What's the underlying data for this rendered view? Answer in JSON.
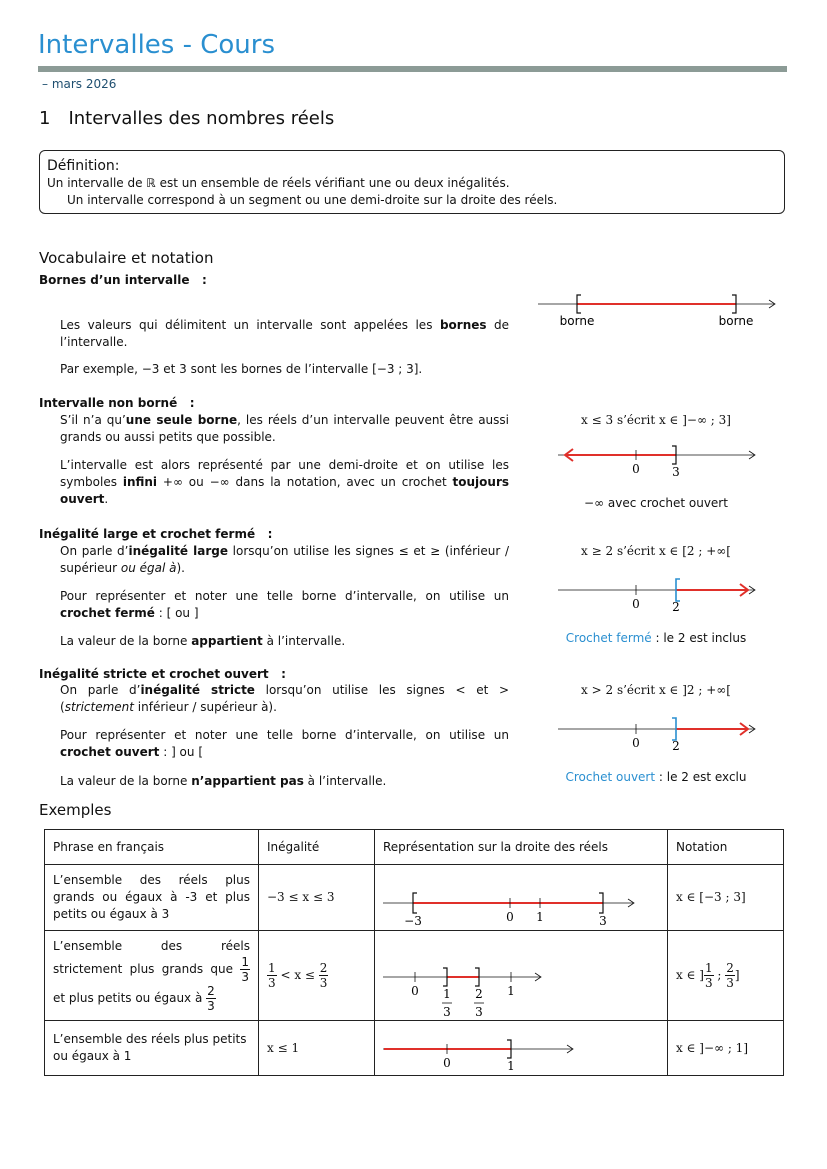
{
  "header": {
    "title": "Intervalles - Cours",
    "date": "– mars 2026"
  },
  "section": {
    "number": "1",
    "title": "Intervalles des nombres réels"
  },
  "definition": {
    "label": "Définition:",
    "lines": [
      "Un intervalle de ℝ est un ensemble de réels vérifiant une ou deux inégalités.",
      "Un intervalle correspond à un segment ou une demi-droite sur la droite des réels."
    ]
  },
  "vocabulary": {
    "title": "Vocabulaire et notation",
    "blocks": [
      {
        "heading": "Bornes d’un intervalle   :",
        "paragraphs": [
          [
            "Les valeurs qui délimitent un intervalle sont appelées les ",
            "bornes",
            " de l’intervalle."
          ],
          [
            "Par exemple, −3 et 3 sont les bornes de l’intervalle [−3 ; 3]."
          ]
        ],
        "figure": {
          "labels": [
            "borne",
            "borne"
          ]
        }
      },
      {
        "heading": "Intervalle non borné   :",
        "paragraphs": [
          [
            "S’il n’a qu’",
            "une seule borne",
            ", les réels d’un intervalle peuvent être aussi grands ou aussi petits que possible."
          ],
          [
            "L’intervalle est alors représenté par une demi-droite et on utilise les symboles ",
            "infini",
            " +∞ ou −∞ dans la notation, avec un crochet ",
            "toujours ouvert",
            "."
          ]
        ],
        "figure": {
          "caption": "x ≤ 3 s’écrit x ∈ ]−∞ ; 3]",
          "labels": [
            "0",
            "3"
          ],
          "note": "−∞ avec crochet ouvert"
        }
      },
      {
        "heading": "Inégalité large et crochet fermé   :",
        "paragraphs": [
          [
            "On parle d’",
            "inégalité large",
            " lorsqu’on utilise les signes ≤ et ≥ (inférieur / supérieur ",
            "ou égal à",
            ")."
          ],
          [
            "Pour représenter et noter une telle borne d’intervalle, on utilise un ",
            "crochet fermé",
            " : [ ou ]"
          ],
          [
            "La valeur de la borne ",
            "appartient",
            " à l’intervalle."
          ]
        ],
        "figure": {
          "caption": "x ≥ 2 s’écrit x ∈ [2 ; +∞[",
          "labels": [
            "0",
            "2"
          ],
          "note": [
            "Crochet fermé",
            " : le 2 est inclus"
          ]
        }
      },
      {
        "heading": "Inégalité stricte et crochet ouvert   :",
        "paragraphs": [
          [
            "On parle d’",
            "inégalité stricte",
            " lorsqu’on utilise les signes < et > (",
            "strictement",
            " inférieur / supérieur à)."
          ],
          [
            "Pour représenter et noter une telle borne d’intervalle, on utilise un ",
            "crochet ouvert",
            " : ] ou ["
          ],
          [
            "La valeur de la borne ",
            "n’appartient pas",
            " à l’intervalle."
          ]
        ],
        "figure": {
          "caption": "x > 2 s’écrit x ∈ ]2 ; +∞[",
          "labels": [
            "0",
            "2"
          ],
          "note": [
            "Crochet ouvert",
            " : le 2 est exclu"
          ]
        }
      }
    ]
  },
  "examples": {
    "title": "Exemples",
    "table": {
      "header": [
        "Phrase en français",
        "Inégalité",
        "Représentation sur la droite des réels",
        "Notation"
      ],
      "rows": [
        {
          "phrase": "L’ensemble des réels plus grands ou égaux à -3 et plus petits ou égaux à 3",
          "inequality": "−3 ≤ x ≤ 3",
          "labels": [
            "−3",
            "0",
            "1",
            "3"
          ],
          "notation": "x ∈ [−3 ; 3]"
        },
        {
          "phrase": [
            "L’ensemble des réels strictement plus grands que ",
            {
              "num": "1",
              "den": "3"
            },
            " et plus petits ou égaux à ",
            {
              "num": "2",
              "den": "3"
            }
          ],
          "inequality": [
            {
              "num": "1",
              "den": "3"
            },
            " < x ≤ ",
            {
              "num": "2",
              "den": "3"
            }
          ],
          "labels": [
            "0",
            {
              "num": "1",
              "den": "3"
            },
            {
              "num": "2",
              "den": "3"
            },
            "1"
          ],
          "notation": [
            "x ∈ ]",
            {
              "num": "1",
              "den": "3"
            },
            " ; ",
            {
              "num": "2",
              "den": "3"
            },
            "]"
          ]
        },
        {
          "phrase": "L’ensemble des réels plus petits ou égaux à 1",
          "inequality": "x ≤ 1",
          "labels": [
            "0",
            "1"
          ],
          "notation": "x ∈ ]−∞ ; 1]"
        }
      ]
    }
  }
}
